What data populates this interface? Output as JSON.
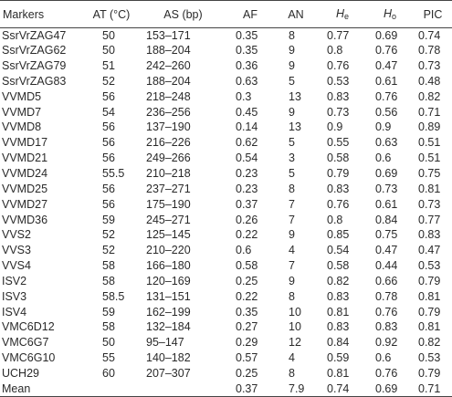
{
  "headers": {
    "markers": "Markers",
    "at": "AT (°C)",
    "as": "AS (bp)",
    "af": "AF",
    "an": "AN",
    "he_main": "H",
    "he_sub": "e",
    "ho_main": "H",
    "ho_sub": "o",
    "pic": "PIC"
  },
  "rows": [
    {
      "marker": "SsrVrZAG47",
      "at": "50",
      "as": "153–171",
      "af": "0.35",
      "an": "8",
      "he": "0.77",
      "ho": "0.69",
      "pic": "0.74"
    },
    {
      "marker": "SsrVrZAG62",
      "at": "50",
      "as": "188–204",
      "af": "0.35",
      "an": "9",
      "he": "0.8",
      "ho": "0.76",
      "pic": "0.78"
    },
    {
      "marker": "SsrVrZAG79",
      "at": "51",
      "as": "242–260",
      "af": "0.36",
      "an": "9",
      "he": "0.76",
      "ho": "0.47",
      "pic": "0.73"
    },
    {
      "marker": "SsrVrZAG83",
      "at": "52",
      "as": "188–204",
      "af": "0.63",
      "an": "5",
      "he": "0.53",
      "ho": "0.61",
      "pic": "0.48"
    },
    {
      "marker": "VVMD5",
      "at": "56",
      "as": "218–248",
      "af": "0.3",
      "an": "13",
      "he": "0.83",
      "ho": "0.76",
      "pic": "0.82"
    },
    {
      "marker": "VVMD7",
      "at": "54",
      "as": "236–256",
      "af": "0.45",
      "an": "9",
      "he": "0.73",
      "ho": "0.56",
      "pic": "0.71"
    },
    {
      "marker": "VVMD8",
      "at": "56",
      "as": "137–190",
      "af": "0.14",
      "an": "13",
      "he": "0.9",
      "ho": "0.9",
      "pic": "0.89"
    },
    {
      "marker": "VVMD17",
      "at": "56",
      "as": "216–226",
      "af": "0.62",
      "an": "5",
      "he": "0.55",
      "ho": "0.63",
      "pic": "0.51"
    },
    {
      "marker": "VVMD21",
      "at": "56",
      "as": "249–266",
      "af": "0.54",
      "an": "3",
      "he": "0.58",
      "ho": "0.6",
      "pic": "0.51"
    },
    {
      "marker": "VVMD24",
      "at": "55.5",
      "as": "210–218",
      "af": "0.23",
      "an": "5",
      "he": "0.79",
      "ho": "0.69",
      "pic": "0.75"
    },
    {
      "marker": "VVMD25",
      "at": "56",
      "as": "237–271",
      "af": "0.23",
      "an": "8",
      "he": "0.83",
      "ho": "0.73",
      "pic": "0.81"
    },
    {
      "marker": "VVMD27",
      "at": "56",
      "as": "175–190",
      "af": "0.37",
      "an": "7",
      "he": "0.76",
      "ho": "0.61",
      "pic": "0.73"
    },
    {
      "marker": "VVMD36",
      "at": "59",
      "as": "245–271",
      "af": "0.26",
      "an": "7",
      "he": "0.8",
      "ho": "0.84",
      "pic": "0.77"
    },
    {
      "marker": "VVS2",
      "at": "52",
      "as": "125–145",
      "af": "0.22",
      "an": "9",
      "he": "0.85",
      "ho": "0.75",
      "pic": "0.83"
    },
    {
      "marker": "VVS3",
      "at": "52",
      "as": "210–220",
      "af": "0.6",
      "an": "4",
      "he": "0.54",
      "ho": "0.47",
      "pic": "0.47"
    },
    {
      "marker": "VVS4",
      "at": "58",
      "as": "166–180",
      "af": "0.58",
      "an": "7",
      "he": "0.58",
      "ho": "0.44",
      "pic": "0.53"
    },
    {
      "marker": "ISV2",
      "at": "58",
      "as": "120–169",
      "af": "0.25",
      "an": "9",
      "he": "0.82",
      "ho": "0.66",
      "pic": "0.79"
    },
    {
      "marker": "ISV3",
      "at": "58.5",
      "as": "131–151",
      "af": "0.22",
      "an": "8",
      "he": "0.83",
      "ho": "0.78",
      "pic": "0.81"
    },
    {
      "marker": "ISV4",
      "at": "59",
      "as": "162–199",
      "af": "0.35",
      "an": "10",
      "he": "0.81",
      "ho": "0.76",
      "pic": "0.79"
    },
    {
      "marker": "VMC6D12",
      "at": "58",
      "as": "132–184",
      "af": "0.27",
      "an": "10",
      "he": "0.83",
      "ho": "0.83",
      "pic": "0.81"
    },
    {
      "marker": "VMC6G7",
      "at": "50",
      "as": "95–147",
      "af": "0.29",
      "an": "12",
      "he": "0.84",
      "ho": "0.92",
      "pic": "0.82"
    },
    {
      "marker": "VMC6G10",
      "at": "55",
      "as": "140–182",
      "af": "0.57",
      "an": "4",
      "he": "0.59",
      "ho": "0.6",
      "pic": "0.53"
    },
    {
      "marker": "UCH29",
      "at": "60",
      "as": "207–307",
      "af": "0.25",
      "an": "8",
      "he": "0.81",
      "ho": "0.76",
      "pic": "0.79"
    },
    {
      "marker": "Mean",
      "at": "",
      "as": "",
      "af": "0.37",
      "an": "7.9",
      "he": "0.74",
      "ho": "0.69",
      "pic": "0.71"
    }
  ]
}
